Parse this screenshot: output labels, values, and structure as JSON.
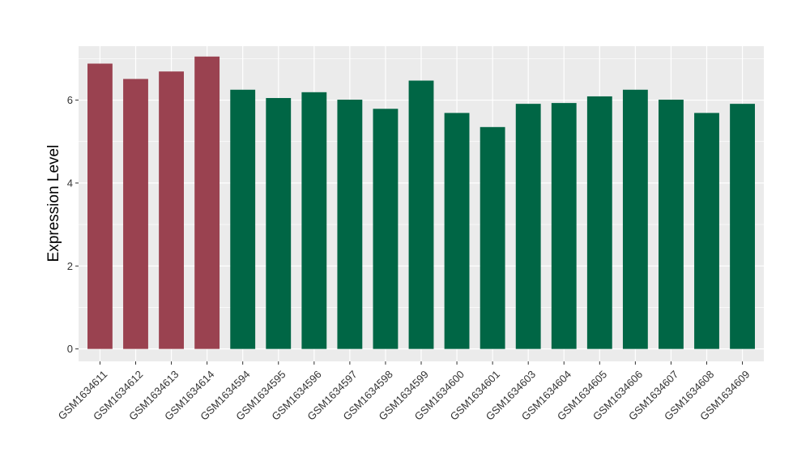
{
  "chart_data": {
    "type": "bar",
    "title": "",
    "xlabel": "",
    "ylabel": "Expression Level",
    "ylim": [
      -0.3,
      7.3
    ],
    "yticks": [
      0,
      2,
      4,
      6
    ],
    "grid": true,
    "legend": "none",
    "categories": [
      "GSM1634611",
      "GSM1634612",
      "GSM1634613",
      "GSM1634614",
      "GSM1634594",
      "GSM1634595",
      "GSM1634596",
      "GSM1634597",
      "GSM1634598",
      "GSM1634599",
      "GSM1634600",
      "GSM1634601",
      "GSM1634603",
      "GSM1634604",
      "GSM1634605",
      "GSM1634606",
      "GSM1634607",
      "GSM1634608",
      "GSM1634609"
    ],
    "values": [
      6.88,
      6.51,
      6.69,
      7.05,
      6.25,
      6.05,
      6.19,
      6.01,
      5.79,
      6.47,
      5.69,
      5.35,
      5.91,
      5.93,
      6.09,
      6.25,
      6.01,
      5.69,
      5.91
    ],
    "groups": [
      1,
      1,
      1,
      1,
      2,
      2,
      2,
      2,
      2,
      2,
      2,
      2,
      2,
      2,
      2,
      2,
      2,
      2,
      2
    ],
    "group_colors": {
      "1": "#9a4250",
      "2": "#006645"
    },
    "panel_background": "#ebebeb",
    "grid_color": "#ffffff"
  }
}
